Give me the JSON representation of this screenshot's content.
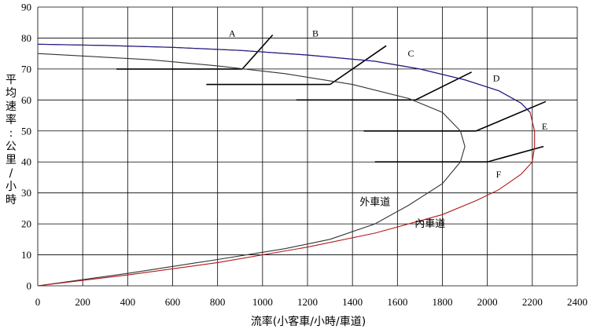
{
  "chart_data": {
    "type": "line",
    "xlabel": "流率(小客車/小時/車道)",
    "ylabel": "平均速率：公里/小時",
    "xlim": [
      0,
      2400
    ],
    "ylim": [
      0,
      90
    ],
    "xticks": [
      0,
      200,
      400,
      600,
      800,
      1000,
      1200,
      1400,
      1600,
      1800,
      2000,
      2200,
      2400
    ],
    "yticks": [
      0,
      10,
      20,
      30,
      40,
      50,
      60,
      70,
      80,
      90
    ],
    "grid": true,
    "colors": {
      "blue": "#1a1f8c",
      "red": "#b01818",
      "black": "#333333"
    },
    "series": [
      {
        "name": "外車道",
        "color": "#333333",
        "points": [
          [
            0,
            0
          ],
          [
            400,
            4
          ],
          [
            800,
            8.5
          ],
          [
            1100,
            12
          ],
          [
            1300,
            15
          ],
          [
            1500,
            20
          ],
          [
            1650,
            26
          ],
          [
            1800,
            33
          ],
          [
            1880,
            40
          ],
          [
            1900,
            45
          ],
          [
            1880,
            50
          ],
          [
            1800,
            56
          ],
          [
            1650,
            60.5
          ],
          [
            1400,
            65
          ],
          [
            1100,
            68.5
          ],
          [
            800,
            71
          ],
          [
            500,
            73
          ],
          [
            200,
            74.2
          ],
          [
            0,
            75
          ]
        ]
      },
      {
        "name": "內車道",
        "color": "#b01818",
        "points": [
          [
            0,
            0
          ],
          [
            400,
            3.5
          ],
          [
            800,
            7.5
          ],
          [
            1200,
            12.5
          ],
          [
            1500,
            17
          ],
          [
            1800,
            23
          ],
          [
            1950,
            27.5
          ],
          [
            2050,
            31
          ],
          [
            2150,
            36
          ],
          [
            2200,
            40
          ],
          [
            2210,
            45
          ],
          [
            2210,
            50
          ],
          [
            2190,
            56
          ],
          [
            2150,
            59
          ],
          [
            2050,
            63
          ],
          [
            1900,
            66.5
          ],
          [
            1700,
            70
          ],
          [
            1500,
            72.5
          ],
          [
            1200,
            74.5
          ],
          [
            900,
            76
          ],
          [
            600,
            77
          ],
          [
            300,
            77.6
          ],
          [
            0,
            78
          ]
        ]
      }
    ],
    "region_boundaries": [
      {
        "h_line": [
          [
            350,
            70
          ],
          [
            910,
            70
          ]
        ],
        "oblique": [
          [
            910,
            70
          ],
          [
            1045,
            81
          ]
        ]
      },
      {
        "h_line": [
          [
            750,
            65
          ],
          [
            1300,
            65
          ]
        ],
        "oblique": [
          [
            1300,
            65
          ],
          [
            1550,
            77.5
          ]
        ]
      },
      {
        "h_line": [
          [
            1150,
            60
          ],
          [
            1680,
            60
          ]
        ],
        "oblique": [
          [
            1680,
            60
          ],
          [
            1930,
            69
          ]
        ]
      },
      {
        "h_line": [
          [
            1450,
            50
          ],
          [
            1950,
            50
          ]
        ],
        "oblique": [
          [
            1950,
            50
          ],
          [
            2260,
            59.5
          ]
        ]
      },
      {
        "h_line": [
          [
            1500,
            40
          ],
          [
            2000,
            40
          ]
        ],
        "oblique": [
          [
            2000,
            40
          ],
          [
            2250,
            45
          ]
        ]
      }
    ],
    "regions": [
      {
        "label": "A",
        "x": 865,
        "y": 80.5
      },
      {
        "label": "B",
        "x": 1235,
        "y": 80.5
      },
      {
        "label": "C",
        "x": 1660,
        "y": 74
      },
      {
        "label": "D",
        "x": 2040,
        "y": 66
      },
      {
        "label": "E",
        "x": 2255,
        "y": 50.5
      },
      {
        "label": "F",
        "x": 2050,
        "y": 35
      }
    ],
    "annotations": [
      {
        "text": "外車道",
        "x": 1500,
        "y": 26
      },
      {
        "text": "內車道",
        "x": 1745,
        "y": 19
      }
    ]
  }
}
